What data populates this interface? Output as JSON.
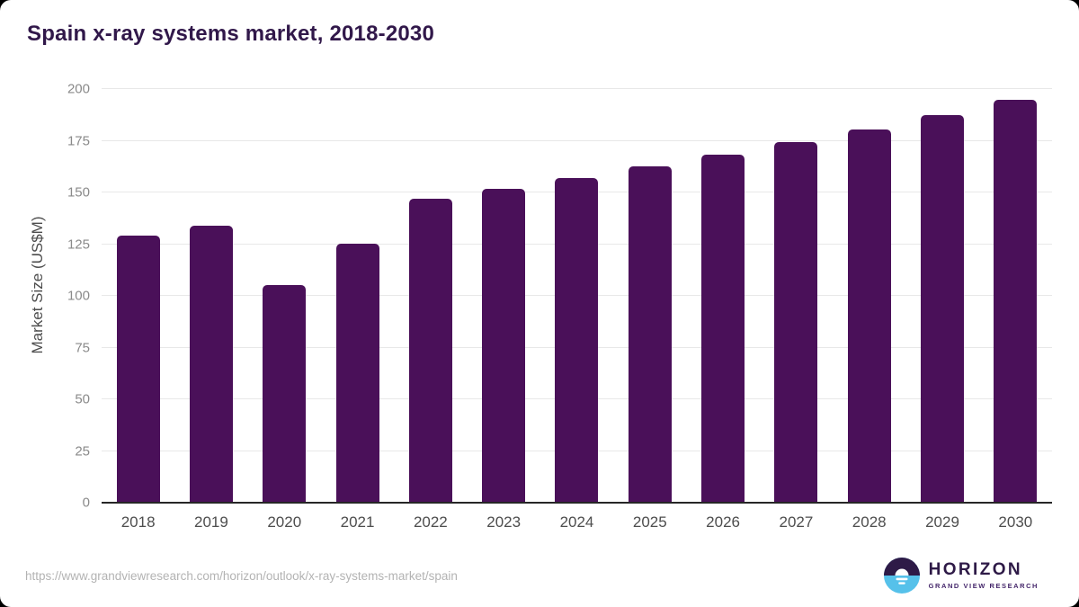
{
  "title": "Spain x-ray systems market, 2018-2030",
  "chart_data": {
    "type": "bar",
    "title": "Spain x-ray systems market, 2018-2030",
    "categories": [
      "2018",
      "2019",
      "2020",
      "2021",
      "2022",
      "2023",
      "2024",
      "2025",
      "2026",
      "2027",
      "2028",
      "2029",
      "2030"
    ],
    "values": [
      129.2,
      134.0,
      105.3,
      125.4,
      146.9,
      151.7,
      157.0,
      162.6,
      168.3,
      174.3,
      180.4,
      187.2,
      194.8
    ],
    "xlabel": "",
    "ylabel": "Market Size (US$M)",
    "ylim": [
      0,
      200
    ],
    "yticks": [
      0,
      25,
      50,
      75,
      100,
      125,
      150,
      175,
      200
    ],
    "grid": "horizontal-only",
    "legend": "none",
    "bar_color": "#4a1059"
  },
  "footer": {
    "source_url": "https://www.grandviewresearch.com/horizon/outlook/x-ray-systems-market/spain",
    "logo_title": "HORIZON",
    "logo_subtitle": "GRAND VIEW RESEARCH"
  },
  "colors": {
    "title_text": "#31184a",
    "bar": "#4a1059",
    "axis_line": "#262626",
    "gridline": "#e8e8e8",
    "y_tick_text": "#8a8a8a",
    "x_tick_text": "#4d4d4d",
    "url_text": "#b3b3b3",
    "logo_dark_purple": "#2e1a47",
    "logo_light_blue": "#56c1ea"
  }
}
